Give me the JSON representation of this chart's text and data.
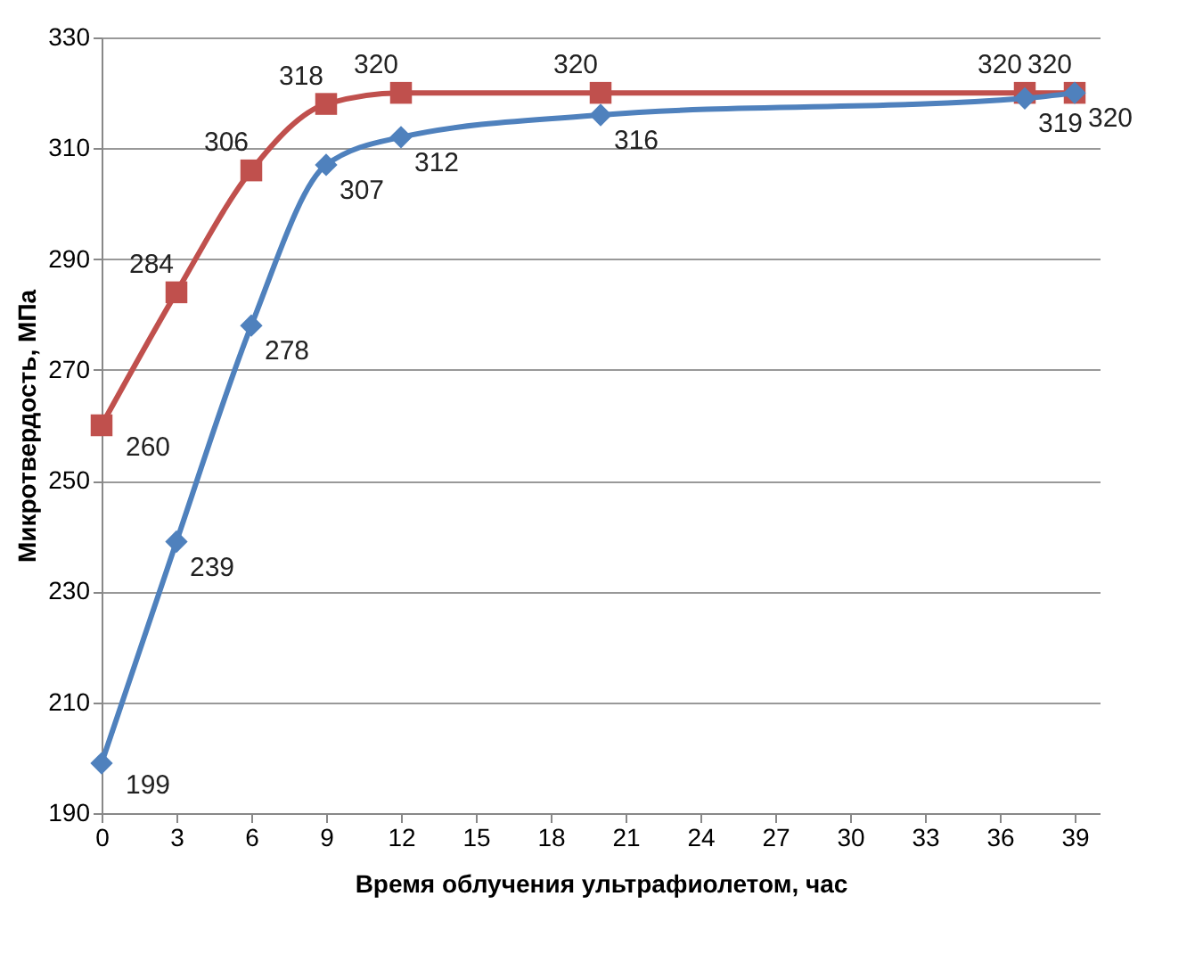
{
  "chart_data": {
    "type": "line",
    "xlabel": "Время облучения ультрафиолетом, час",
    "ylabel": "Микротвердость, МПа",
    "x": [
      0,
      3,
      6,
      9,
      12,
      20,
      37,
      39
    ],
    "series": [
      {
        "color": "#c0504d",
        "marker": "square",
        "values": [
          260,
          284,
          306,
          318,
          320,
          320,
          320,
          320
        ]
      },
      {
        "color": "#4f81bd",
        "marker": "diamond",
        "values": [
          199,
          239,
          278,
          307,
          312,
          316,
          319,
          320
        ]
      }
    ],
    "xlim": [
      0,
      40
    ],
    "xticks": [
      0,
      3,
      6,
      9,
      12,
      15,
      18,
      21,
      24,
      27,
      30,
      33,
      36,
      39
    ],
    "ylim": [
      190,
      330
    ],
    "yticks": [
      190,
      210,
      230,
      250,
      270,
      290,
      310,
      330
    ],
    "grid": "y",
    "data_labels": true
  }
}
